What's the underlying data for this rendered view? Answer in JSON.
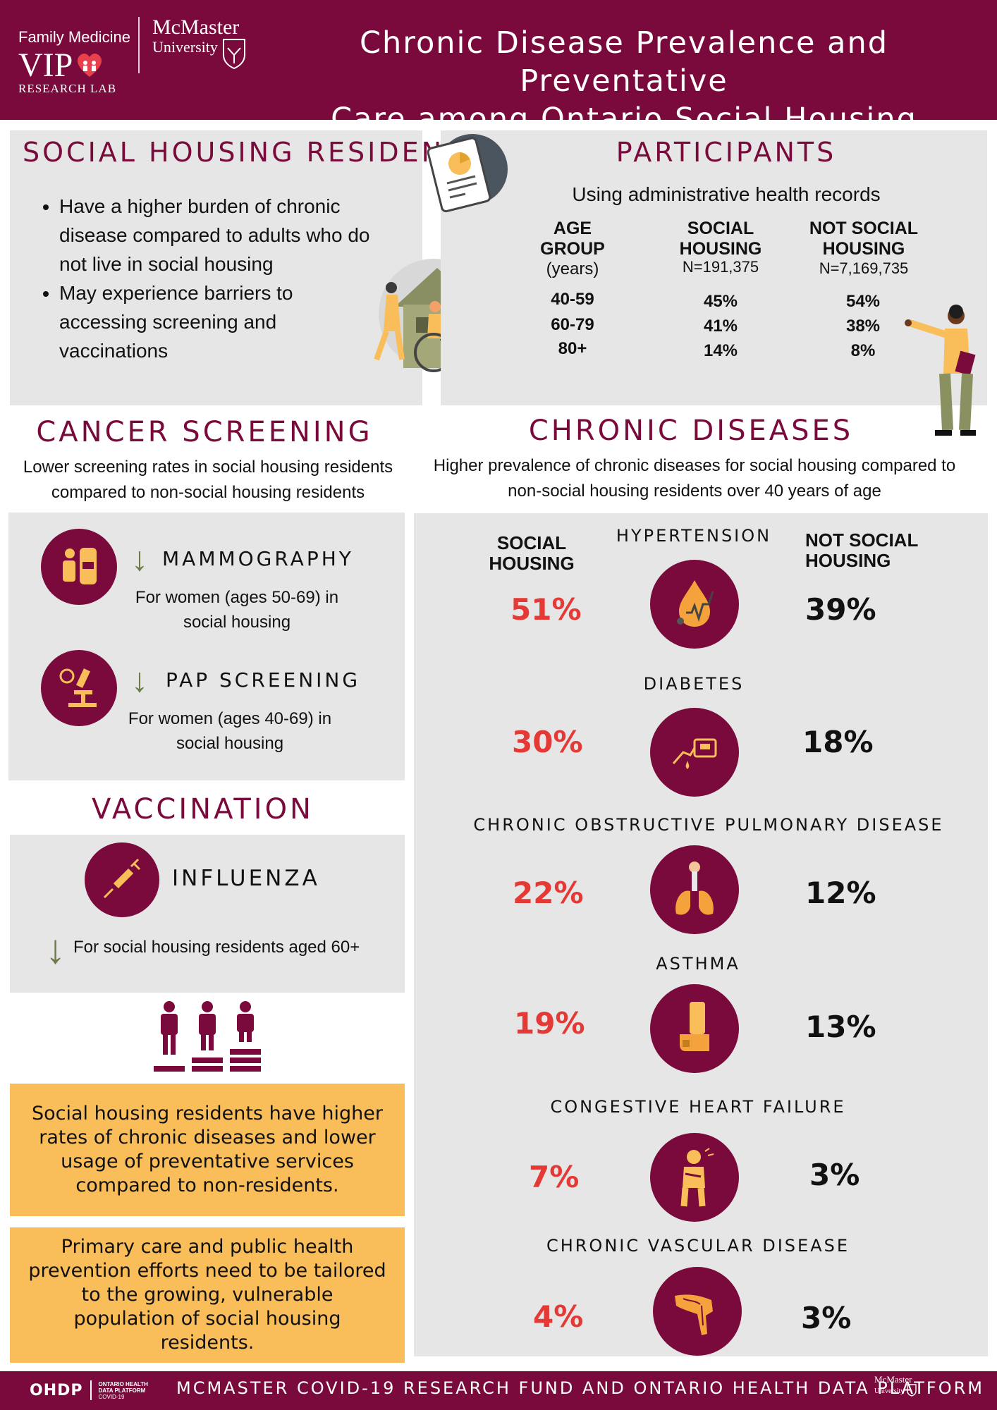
{
  "header": {
    "left_logo_line1": "Family Medicine",
    "left_logo_vip": "VIP",
    "left_logo_lab": "RESEARCH LAB",
    "mcmaster_line1": "McMaster",
    "mcmaster_line2": "University",
    "title_line1": "Chronic Disease Prevalence and Preventative",
    "title_line2": "Care among Ontario Social Housing Residents"
  },
  "social_housing": {
    "title": "SOCIAL HOUSING RESIDENTS",
    "bullets": [
      "Have a higher burden of chronic disease compared to adults who do not live in social housing",
      "May experience barriers to accessing screening and vaccinations"
    ]
  },
  "participants": {
    "title": "PARTICIPANTS",
    "subtitle": "Using administrative health records",
    "col_age": "AGE GROUP",
    "col_age_sub": "(years)",
    "col_sh": "SOCIAL HOUSING",
    "col_sh_n": "N=191,375",
    "col_nsh": "NOT SOCIAL HOUSING",
    "col_nsh_n": "N=7,169,735",
    "rows": [
      {
        "age": "40-59",
        "sh": "45%",
        "nsh": "54%"
      },
      {
        "age": "60-79",
        "sh": "41%",
        "nsh": "38%"
      },
      {
        "age": "80+",
        "sh": "14%",
        "nsh": "8%"
      }
    ]
  },
  "cancer": {
    "title": "CANCER SCREENING",
    "subtitle": "Lower screening rates in social housing residents compared to non-social housing residents",
    "items": [
      {
        "name": "MAMMOGRAPHY",
        "desc": "For women (ages 50-69) in social housing"
      },
      {
        "name": "PAP SCREENING",
        "desc": "For women (ages 40-69) in social housing"
      }
    ]
  },
  "vaccination": {
    "title": "VACCINATION",
    "name": "INFLUENZA",
    "desc": "For social housing residents aged 60+"
  },
  "notes": [
    "Social housing residents have higher rates of chronic diseases and lower usage of preventative services compared to non-residents.",
    "Primary care and public health prevention efforts need to be tailored to the growing, vulnerable population of social housing residents."
  ],
  "chronic": {
    "title": "CHRONIC DISEASES",
    "subtitle": "Higher prevalence of chronic diseases for social housing compared to non-social housing residents over 40 years of age",
    "col_sh": "SOCIAL HOUSING",
    "col_nsh": "NOT SOCIAL HOUSING",
    "diseases": [
      {
        "name": "HYPERTENSION",
        "sh": "51%",
        "nsh": "39%",
        "icon": "blood-drop-icon"
      },
      {
        "name": "DIABETES",
        "sh": "30%",
        "nsh": "18%",
        "icon": "glucose-meter-icon"
      },
      {
        "name": "CHRONIC OBSTRUCTIVE PULMONARY DISEASE",
        "sh": "22%",
        "nsh": "12%",
        "icon": "lungs-icon"
      },
      {
        "name": "ASTHMA",
        "sh": "19%",
        "nsh": "13%",
        "icon": "inhaler-icon"
      },
      {
        "name": "CONGESTIVE HEART FAILURE",
        "sh": "7%",
        "nsh": "3%",
        "icon": "chest-pain-icon"
      },
      {
        "name": "CHRONIC VASCULAR DISEASE",
        "sh": "4%",
        "nsh": "3%",
        "icon": "leg-veins-icon"
      }
    ]
  },
  "footer": {
    "ohdp": "OHDP",
    "ohdp_sub": "ONTARIO HEALTH DATA PLATFORM",
    "ohdp_covid": "COVID-19",
    "text": "MCMASTER COVID-19 RESEARCH FUND AND ONTARIO HEALTH DATA PLATFORM",
    "mcmaster_line1": "McMaster",
    "mcmaster_line2": "University"
  },
  "colors": {
    "maroon": "#7a0a3b",
    "panel_gray": "#e6e6e6",
    "accent_orange": "#f9bd59",
    "red": "#e53935",
    "olive": "#6b7b4a"
  }
}
